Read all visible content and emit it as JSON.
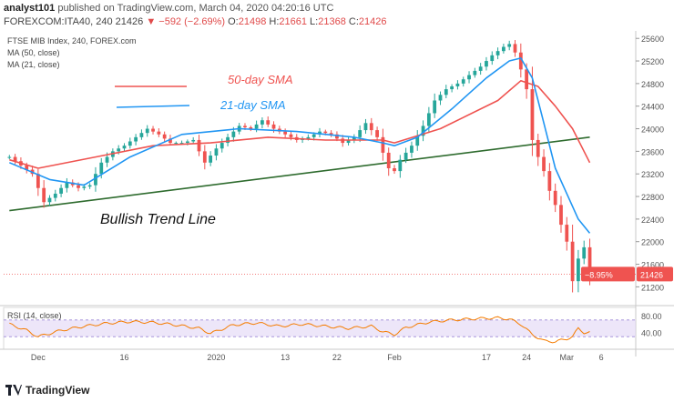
{
  "header": {
    "publisher": "analyst101",
    "published_text": "published on TradingView.com, March 04, 2020 04:20:16 UTC",
    "symbol_line": {
      "symbol": "FOREXCOM:ITA40, 240",
      "last": "21426",
      "change": "▼ −592 (−2.69%)",
      "o_label": "O:",
      "o": "21498",
      "h_label": "H:",
      "h": "21661",
      "l_label": "L:",
      "l": "21368",
      "c_label": "C:",
      "c": "21426"
    }
  },
  "footer": {
    "brand": "TradingView",
    "logo_icon": "tradingview-logo-icon"
  },
  "colors": {
    "up": "#26a69a",
    "down": "#ef5350",
    "sma50": "#ef5350",
    "sma21": "#2196f3",
    "trendline": "#2e6b2e",
    "rsi": "#f57c00",
    "rsi_band": "#e1d5f5",
    "price_tag": "#ef5350",
    "annotation_text": "#333333"
  },
  "chart_data": [
    {
      "type": "candlestick",
      "title": "FTSE MIB Index, 240, FOREX.com",
      "legend": [
        "MA (50, close)",
        "MA (21, close)"
      ],
      "y_axis_position": "right",
      "ylim": [
        20900,
        25700
      ],
      "y_ticks": [
        21200,
        21600,
        22000,
        22400,
        22800,
        23200,
        23600,
        24000,
        24400,
        24800,
        25200,
        25600
      ],
      "x_ticks": [
        "Dec",
        "16",
        "2020",
        "13",
        "22",
        "Feb",
        "17",
        "24",
        "Mar",
        "6"
      ],
      "x_tick_days": [
        0,
        15,
        31,
        43,
        52,
        62,
        78,
        85,
        92,
        98
      ],
      "last_price_label": "21426",
      "change_label": "−8.95%",
      "last_price": 21426,
      "annotations": [
        "50-day SMA",
        "21-day SMA",
        "Bullish Trend Line"
      ],
      "candles_anchor_day": [
        -5,
        -3,
        -1,
        1,
        3,
        5,
        7,
        9,
        11,
        13,
        15,
        17,
        19,
        21,
        23,
        25,
        27,
        29,
        31,
        33,
        35,
        37,
        39,
        41,
        43,
        45,
        47,
        49,
        51,
        53,
        55,
        57,
        59,
        61,
        62,
        63,
        65,
        67,
        69,
        71,
        73,
        75,
        77,
        79,
        81,
        82,
        83,
        84,
        85,
        86,
        87,
        88,
        89,
        90,
        91,
        92,
        93,
        94,
        95,
        96
      ],
      "candles_anchor_close": [
        23500,
        23350,
        23200,
        22700,
        22850,
        23050,
        22950,
        23000,
        23400,
        23600,
        23700,
        23850,
        24000,
        23900,
        23750,
        23750,
        23800,
        23400,
        23650,
        23850,
        24050,
        24000,
        24150,
        24000,
        23900,
        23800,
        23850,
        23950,
        23900,
        23750,
        23850,
        24100,
        23850,
        23300,
        23250,
        23450,
        23700,
        24050,
        24500,
        24700,
        24800,
        24950,
        25100,
        25300,
        25450,
        25500,
        25350,
        25050,
        24700,
        23800,
        23500,
        23250,
        22900,
        22650,
        22300,
        22000,
        21300,
        21700,
        21900,
        21426
      ],
      "sma50_anchor_day": [
        -5,
        0,
        10,
        20,
        30,
        40,
        50,
        60,
        62,
        70,
        80,
        84,
        87,
        90,
        93,
        96
      ],
      "sma50_anchor_value": [
        23450,
        23300,
        23500,
        23700,
        23750,
        23850,
        23800,
        23800,
        23750,
        24000,
        24500,
        24850,
        24750,
        24400,
        24000,
        23400
      ],
      "sma21_anchor_day": [
        -5,
        2,
        8,
        16,
        25,
        35,
        45,
        55,
        60,
        62,
        66,
        72,
        78,
        82,
        84,
        86,
        88,
        90,
        92,
        94,
        96
      ],
      "sma21_anchor_value": [
        23400,
        23100,
        23000,
        23500,
        23900,
        24000,
        23950,
        23850,
        23750,
        23700,
        23850,
        24350,
        24900,
        25200,
        25250,
        24900,
        24100,
        23300,
        22850,
        22400,
        22150
      ],
      "trendline": {
        "day": [
          -5,
          96
        ],
        "value": [
          22550,
          23850
        ]
      }
    },
    {
      "type": "line",
      "title": "RSI (14, close)",
      "ylim": [
        0,
        100
      ],
      "y_ticks": [
        40.0,
        80.0
      ],
      "band": [
        30,
        70
      ],
      "rsi_anchor_day": [
        -5,
        -2,
        0,
        4,
        8,
        12,
        16,
        20,
        24,
        28,
        30,
        34,
        38,
        42,
        46,
        50,
        54,
        58,
        60,
        62,
        64,
        68,
        72,
        76,
        80,
        82,
        84,
        86,
        88,
        90,
        92,
        93,
        94,
        95,
        96
      ],
      "rsi_anchor_value": [
        60,
        45,
        30,
        45,
        55,
        62,
        66,
        64,
        58,
        50,
        38,
        58,
        63,
        55,
        60,
        55,
        50,
        55,
        42,
        35,
        52,
        65,
        70,
        73,
        75,
        72,
        60,
        35,
        20,
        18,
        25,
        30,
        50,
        40,
        40
      ]
    }
  ]
}
